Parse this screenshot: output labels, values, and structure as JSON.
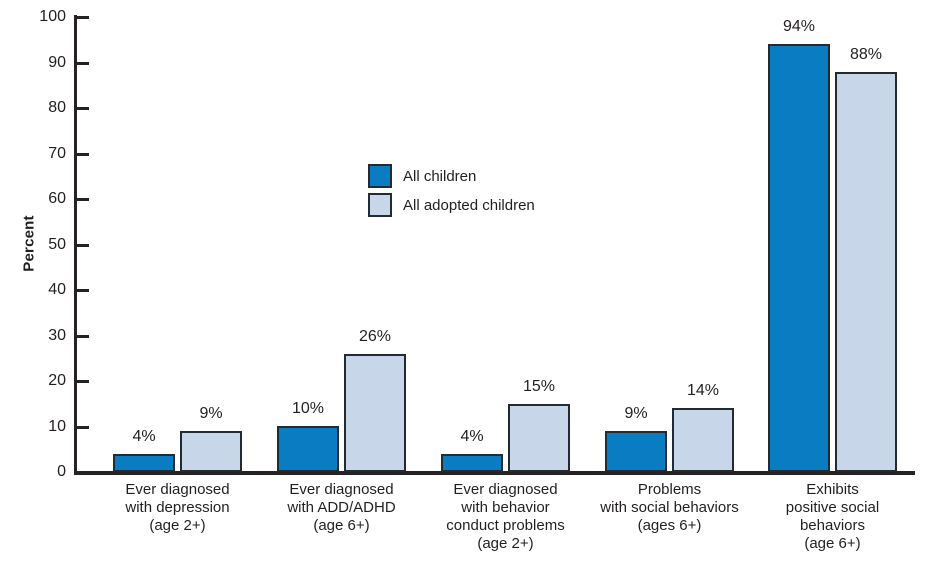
{
  "chart_data": {
    "type": "bar",
    "title": "",
    "xlabel": "",
    "ylabel": "Percent",
    "ylim": [
      0,
      100
    ],
    "yticks": [
      0,
      10,
      20,
      30,
      40,
      50,
      60,
      70,
      80,
      90,
      100
    ],
    "grid": false,
    "legend_position": "upper-center-left",
    "categories": [
      [
        "Ever diagnosed",
        "with depression",
        "(age 2+)"
      ],
      [
        "Ever diagnosed",
        "with ADD/ADHD",
        "(age 6+)"
      ],
      [
        "Ever diagnosed",
        "with behavior",
        "conduct problems",
        "(age 2+)"
      ],
      [
        "Problems",
        "with social behaviors",
        "(ages 6+)"
      ],
      [
        "Exhibits",
        "positive social",
        "behaviors",
        "(age 6+)"
      ]
    ],
    "series": [
      {
        "name": "All children",
        "color": "#0a7cc1",
        "values": [
          4,
          10,
          4,
          9,
          94
        ],
        "labels": [
          "4%",
          "10%",
          "4%",
          "9%",
          "94%"
        ]
      },
      {
        "name": "All adopted children",
        "color": "#c8d6e9",
        "values": [
          9,
          26,
          15,
          14,
          88
        ],
        "labels": [
          "9%",
          "26%",
          "15%",
          "14%",
          "88%"
        ]
      }
    ],
    "colors": {
      "bar_outline": "#232a31",
      "axis": "#262224",
      "text": "#231f20",
      "background": "#ffffff"
    }
  }
}
